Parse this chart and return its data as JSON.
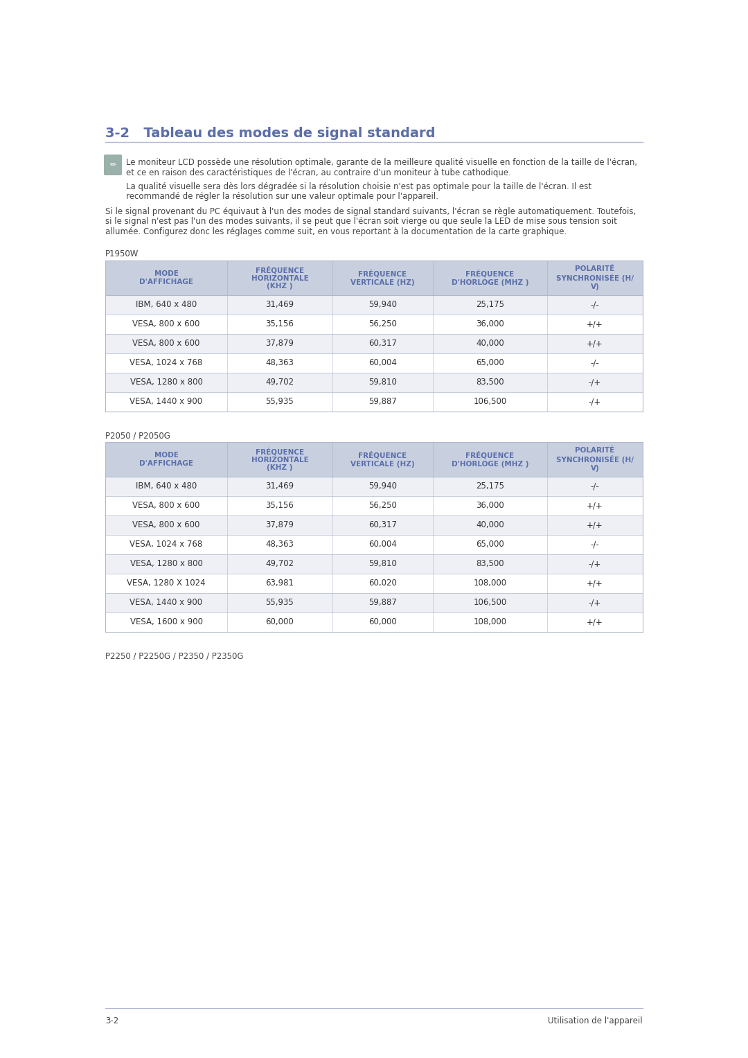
{
  "page_bg": "#ffffff",
  "section_title": "3-2   Tableau des modes de signal standard",
  "section_title_color": "#5b6ea8",
  "section_line_color": "#b0b8d0",
  "body_text_color": "#444444",
  "dark_text_color": "#222222",
  "para1_line1": "Le moniteur LCD possède une résolution optimale, garante de la meilleure qualité visuelle en fonction de la taille de l'écran,",
  "para1_line2": "et ce en raison des caractéristiques de l'écran, au contraire d'un moniteur à tube cathodique.",
  "para2_line1": "La qualité visuelle sera dès lors dégradée si la résolution choisie n'est pas optimale pour la taille de l'écran. Il est",
  "para2_line2": "recommandé de régler la résolution sur une valeur optimale pour l'appareil.",
  "para3_line1": "Si le signal provenant du PC équivaut à l'un des modes de signal standard suivants, l'écran se règle automatiquement. Toutefois,",
  "para3_line2": "si le signal n'est pas l'un des modes suivants, il se peut que l'écran soit vierge ou que seule la LED de mise sous tension soit",
  "para3_line3": "allumée. Configurez donc les réglages comme suit, en vous reportant à la documentation de la carte graphique.",
  "table_header_bg": "#c8d0e0",
  "table_row_bg_odd": "#eef0f6",
  "table_row_bg_even": "#ffffff",
  "table_border_color": "#b0b8cc",
  "table_header_text_color": "#5b6ea8",
  "table_data_text_color": "#333333",
  "col_headers": [
    "MODE\nD'AFFICHAGE",
    "FRÉQUENCE\nHORIZONTALE\n(KHZ )",
    "FRÉQUENCE\nVERTICALE (HZ)",
    "FRÉQUENCE\nD'HORLOGE (MHZ )",
    "POLARITÉ\nSYNCHRONISÉE (H/\nV)"
  ],
  "table1_label": "P1950W",
  "table1_rows": [
    [
      "IBM, 640 x 480",
      "31,469",
      "59,940",
      "25,175",
      "-/-"
    ],
    [
      "VESA, 800 x 600",
      "35,156",
      "56,250",
      "36,000",
      "+/+"
    ],
    [
      "VESA, 800 x 600",
      "37,879",
      "60,317",
      "40,000",
      "+/+"
    ],
    [
      "VESA, 1024 x 768",
      "48,363",
      "60,004",
      "65,000",
      "-/-"
    ],
    [
      "VESA, 1280 x 800",
      "49,702",
      "59,810",
      "83,500",
      "-/+"
    ],
    [
      "VESA, 1440 x 900",
      "55,935",
      "59,887",
      "106,500",
      "-/+"
    ]
  ],
  "table2_label": "P2050 / P2050G",
  "table2_rows": [
    [
      "IBM, 640 x 480",
      "31,469",
      "59,940",
      "25,175",
      "-/-"
    ],
    [
      "VESA, 800 x 600",
      "35,156",
      "56,250",
      "36,000",
      "+/+"
    ],
    [
      "VESA, 800 x 600",
      "37,879",
      "60,317",
      "40,000",
      "+/+"
    ],
    [
      "VESA, 1024 x 768",
      "48,363",
      "60,004",
      "65,000",
      "-/-"
    ],
    [
      "VESA, 1280 x 800",
      "49,702",
      "59,810",
      "83,500",
      "-/+"
    ],
    [
      "VESA, 1280 X 1024",
      "63,981",
      "60,020",
      "108,000",
      "+/+"
    ],
    [
      "VESA, 1440 x 900",
      "55,935",
      "59,887",
      "106,500",
      "-/+"
    ],
    [
      "VESA, 1600 x 900",
      "60,000",
      "60,000",
      "108,000",
      "+/+"
    ]
  ],
  "table3_label": "P2250 / P2250G / P2350 / P2350G",
  "footer_left": "3-2",
  "footer_right": "Utilisation de l'appareil",
  "footer_line_color": "#b0b8d0",
  "icon_bg": "#9ab0aa"
}
